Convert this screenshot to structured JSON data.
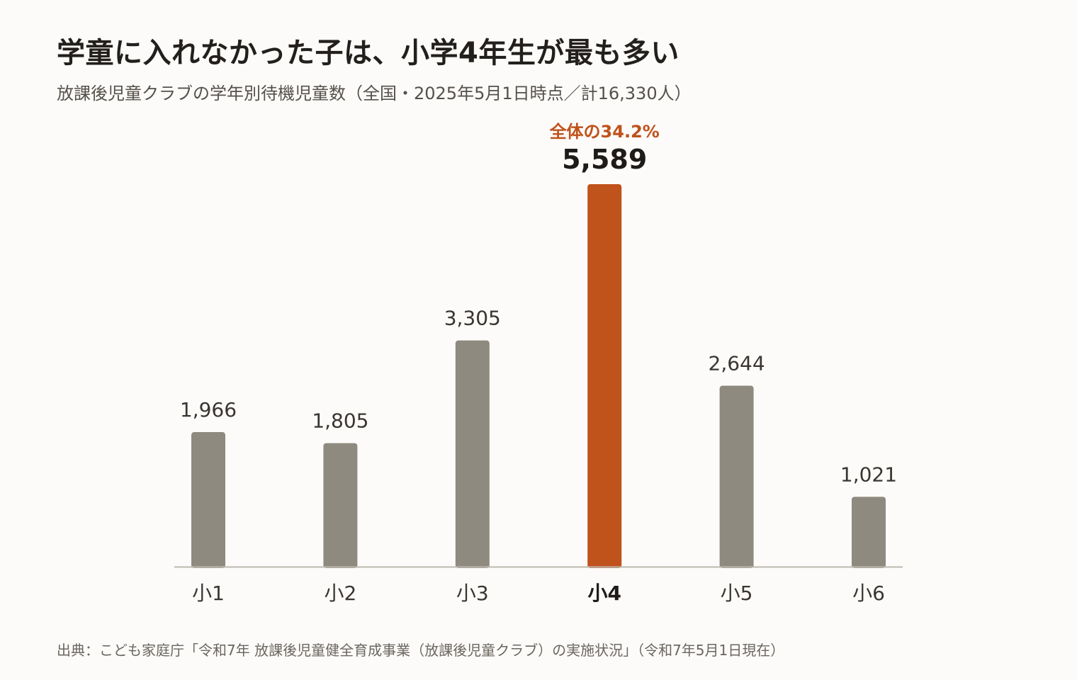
{
  "header": {
    "title": "学童に入れなかった子は、小学4年生が最も多い",
    "subtitle": "放課後児童クラブの学年別待機児童数（全国・2025年5月1日時点／計16,330人）"
  },
  "footer": {
    "source": "出典：こども家庭庁「令和7年 放課後児童健全育成事業（放課後児童クラブ）の実施状況」（令和7年5月1日現在）"
  },
  "colors": {
    "bar": "#8e8a7f",
    "highlight": "#c0521b",
    "axis": "#bdb8b0",
    "label": "#3a3530",
    "highlight_text": "#1f1b18"
  },
  "chart_data": {
    "type": "bar",
    "categories": [
      "小1",
      "小2",
      "小3",
      "小4",
      "小5",
      "小6"
    ],
    "values": [
      1966,
      1805,
      3305,
      5589,
      2644,
      1021
    ],
    "value_labels": [
      "1,966",
      "1,805",
      "3,305",
      "5,589",
      "2,644",
      "1,021"
    ],
    "highlight_index": 3,
    "highlight_annotation": "全体の34.2%",
    "ylim": [
      0,
      5589
    ],
    "grid": false,
    "xlabel": "",
    "ylabel": ""
  }
}
